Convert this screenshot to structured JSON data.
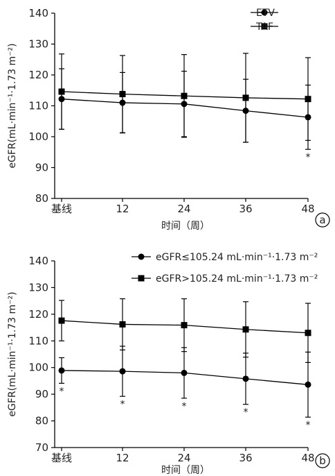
{
  "chart_data": [
    {
      "type": "line",
      "panel_label": "a",
      "categories": [
        "基线",
        "12",
        "24",
        "36",
        "48"
      ],
      "xlabel": "时间（周）",
      "ylabel": "eGFR(mL·min⁻¹·1.73 m⁻²)",
      "ylim": [
        80,
        140
      ],
      "yticks": [
        80,
        90,
        100,
        110,
        120,
        130,
        140
      ],
      "grid": false,
      "legend_position": "top-right",
      "series": [
        {
          "name": "ETV",
          "marker": "circle",
          "values": [
            112.2,
            111.0,
            110.6,
            108.4,
            106.3
          ],
          "error": [
            9.8,
            9.8,
            10.6,
            10.2,
            10.4
          ],
          "significance": [
            "",
            "",
            "",
            "",
            "*"
          ]
        },
        {
          "name": "TAF",
          "marker": "square",
          "values": [
            114.6,
            113.8,
            113.2,
            112.6,
            112.2
          ],
          "error": [
            12.2,
            12.5,
            13.4,
            14.4,
            13.4
          ],
          "significance": [
            "",
            "",
            "",
            "",
            ""
          ]
        }
      ]
    },
    {
      "type": "line",
      "panel_label": "b",
      "categories": [
        "基线",
        "12",
        "24",
        "36",
        "48"
      ],
      "xlabel": "时间（周）",
      "ylabel": "eGFR(mL·min⁻¹·1.73 m⁻²)",
      "ylim": [
        70,
        140
      ],
      "yticks": [
        70,
        80,
        90,
        100,
        110,
        120,
        130,
        140
      ],
      "grid": false,
      "legend_position": "top-right",
      "series": [
        {
          "name": "eGFR≤105.24 mL·min⁻¹·1.73 m⁻²",
          "marker": "circle",
          "values": [
            98.9,
            98.6,
            98.0,
            95.8,
            93.6
          ],
          "error": [
            4.8,
            9.4,
            9.5,
            9.6,
            12.2
          ],
          "significance": [
            "*",
            "*",
            "*",
            "*",
            "*"
          ]
        },
        {
          "name": "eGFR>105.24 mL·min⁻¹·1.73 m⁻²",
          "marker": "square",
          "values": [
            117.6,
            116.2,
            115.9,
            114.3,
            113.0
          ],
          "error": [
            7.6,
            9.6,
            9.9,
            10.4,
            11.1
          ],
          "significance": [
            "",
            "",
            "",
            "",
            ""
          ]
        }
      ]
    }
  ]
}
